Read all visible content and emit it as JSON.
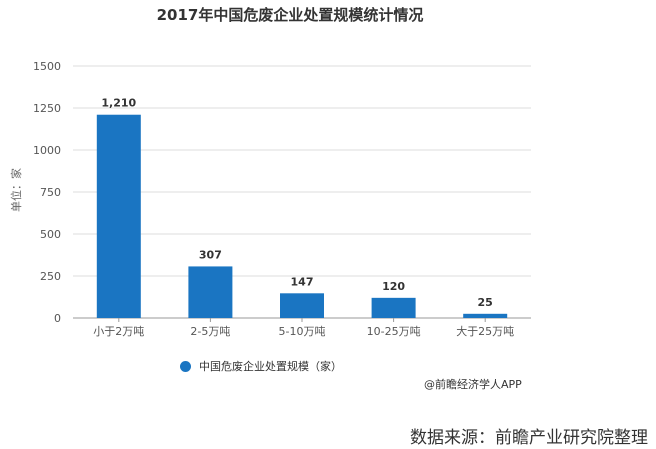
{
  "chart_data": {
    "type": "bar",
    "title": "2017年中国危废企业处置规模统计情况",
    "ylabel": "单位：家",
    "categories": [
      "小于2万吨",
      "2-5万吨",
      "5-10万吨",
      "10-25万吨",
      "大于25万吨"
    ],
    "series": [
      {
        "name": "中国危废企业处置规模（家）",
        "values": [
          1210,
          307,
          147,
          120,
          25
        ]
      }
    ],
    "data_labels": [
      "1,210",
      "307",
      "147",
      "120",
      "25"
    ],
    "ylim": [
      0,
      1500
    ],
    "yticks": [
      0,
      250,
      500,
      750,
      1000,
      1250,
      1500
    ],
    "grid": true,
    "legend_position": "bottom-left",
    "color": "#1a75c2"
  },
  "credit": "@前瞻经济学人APP",
  "source": "数据来源：前瞻产业研究院整理"
}
